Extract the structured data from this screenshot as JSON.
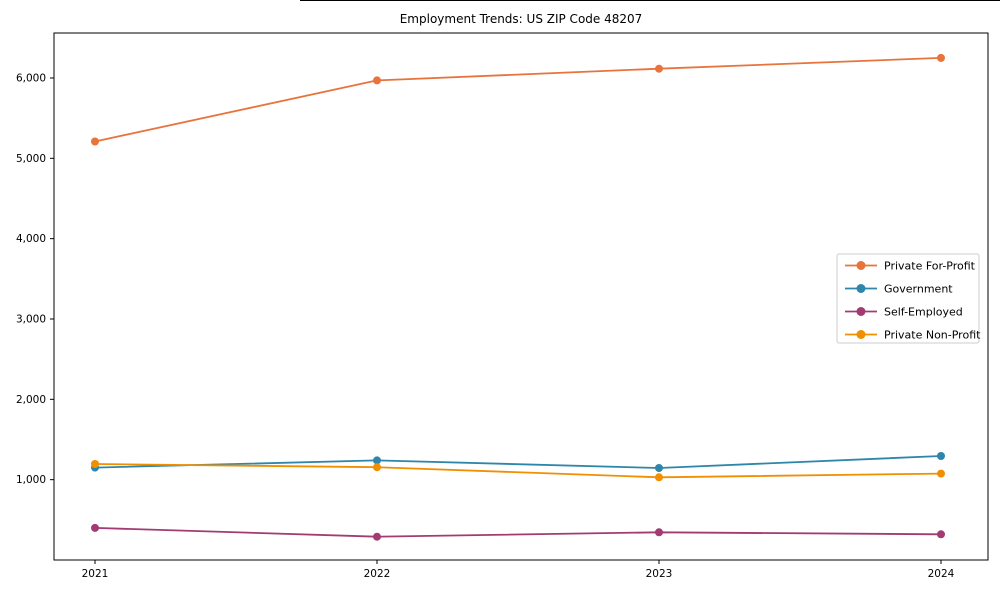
{
  "chart_data": {
    "type": "line",
    "title": "Employment Trends: US ZIP Code 48207",
    "xlabel": "",
    "ylabel": "",
    "categories": [
      "2021",
      "2022",
      "2023",
      "2024"
    ],
    "series": [
      {
        "name": "Private For-Profit",
        "color": "#E8743B",
        "values": [
          5210,
          5970,
          6115,
          6250
        ]
      },
      {
        "name": "Government",
        "color": "#2E86AB",
        "values": [
          1150,
          1240,
          1145,
          1295
        ]
      },
      {
        "name": "Self-Employed",
        "color": "#A23B72",
        "values": [
          400,
          290,
          345,
          320
        ]
      },
      {
        "name": "Private Non-Profit",
        "color": "#F18F01",
        "values": [
          1195,
          1155,
          1030,
          1075
        ]
      }
    ],
    "yticks": [
      1000,
      2000,
      3000,
      4000,
      5000,
      6000
    ],
    "ytick_labels": [
      "1,000",
      "2,000",
      "3,000",
      "4,000",
      "5,000",
      "6,000"
    ],
    "ylim": [
      0,
      6560
    ],
    "grid": false,
    "legend_position": "center-right",
    "spine_color": "#000000",
    "legend_border_color": "#cccccc",
    "background_color": "#ffffff"
  }
}
